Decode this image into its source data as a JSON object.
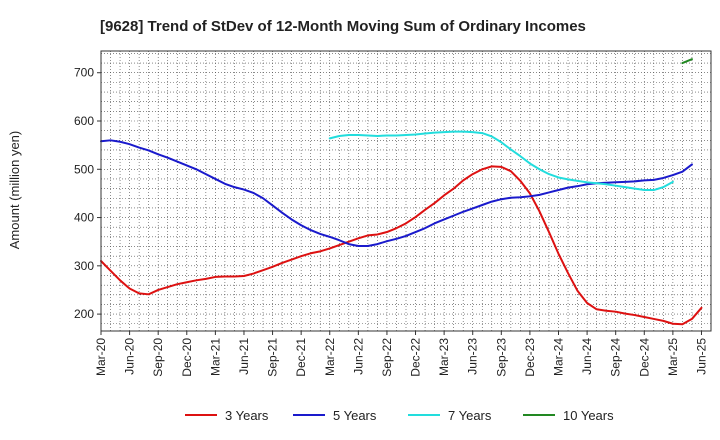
{
  "chart_data": {
    "type": "line",
    "title": "[9628]  Trend of StDev of 12-Month Moving Sum of Ordinary Incomes",
    "xlabel": "",
    "ylabel": "Amount (million yen)",
    "ylim": [
      165,
      745
    ],
    "yticks": [
      200,
      300,
      400,
      500,
      600,
      700
    ],
    "xticks": [
      "Mar-20",
      "Jun-20",
      "Sep-20",
      "Dec-20",
      "Mar-21",
      "Jun-21",
      "Sep-21",
      "Dec-21",
      "Mar-22",
      "Jun-22",
      "Sep-22",
      "Dec-22",
      "Mar-23",
      "Jun-23",
      "Sep-23",
      "Dec-23",
      "Mar-24",
      "Jun-24",
      "Sep-24",
      "Dec-24",
      "Mar-25",
      "Jun-25"
    ],
    "x_start": "Mar-20",
    "n_months": 64,
    "grid": true,
    "series": [
      {
        "name": "3 Years",
        "color": "#dd1111",
        "start_index": 0,
        "values": [
          310,
          290,
          270,
          253,
          243,
          241,
          250,
          256,
          262,
          266,
          270,
          273,
          277,
          278,
          278,
          279,
          284,
          291,
          298,
          306,
          313,
          320,
          326,
          330,
          336,
          343,
          350,
          357,
          363,
          365,
          370,
          378,
          388,
          401,
          416,
          430,
          446,
          460,
          477,
          490,
          500,
          506,
          505,
          496,
          476,
          450,
          413,
          370,
          325,
          285,
          248,
          223,
          210,
          207,
          205,
          201,
          198,
          194,
          190,
          186,
          180,
          179,
          190,
          213
        ]
      },
      {
        "name": "5 Years",
        "color": "#1a1acc",
        "start_index": 0,
        "values": [
          558,
          560,
          557,
          552,
          545,
          539,
          531,
          524,
          516,
          508,
          500,
          490,
          480,
          470,
          463,
          458,
          451,
          440,
          425,
          410,
          396,
          384,
          374,
          366,
          360,
          353,
          345,
          341,
          341,
          345,
          351,
          356,
          362,
          370,
          378,
          388,
          396,
          404,
          412,
          419,
          426,
          433,
          438,
          441,
          442,
          444,
          447,
          452,
          457,
          462,
          465,
          469,
          471,
          472,
          473,
          474,
          475,
          477,
          478,
          482,
          488,
          495,
          510
        ]
      },
      {
        "name": "7 Years",
        "color": "#22dddd",
        "start_index": 24,
        "values": [
          564,
          569,
          571,
          571,
          570,
          569,
          570,
          570,
          571,
          572,
          574,
          576,
          577,
          578,
          578,
          577,
          575,
          568,
          556,
          541,
          527,
          512,
          500,
          490,
          483,
          479,
          476,
          473,
          471,
          469,
          466,
          463,
          460,
          457,
          457,
          463,
          474
        ]
      },
      {
        "name": "10 Years",
        "color": "#228822",
        "start_index": 61,
        "values": [
          720,
          728
        ]
      }
    ],
    "legend_position": "bottom"
  }
}
